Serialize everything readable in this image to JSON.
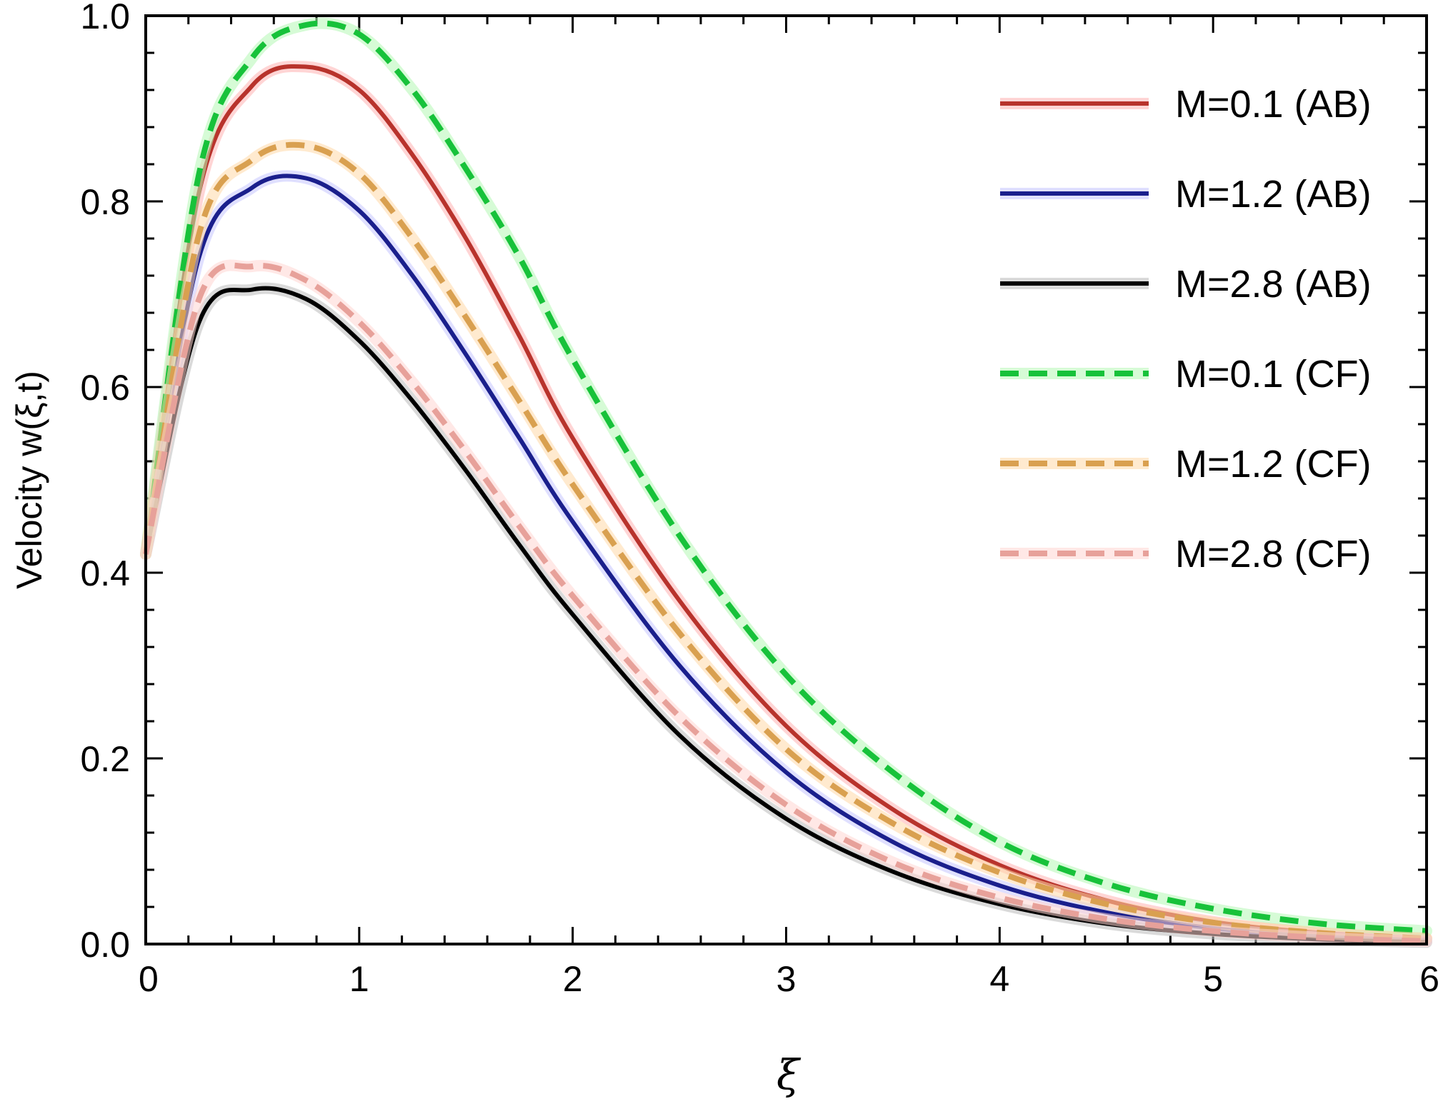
{
  "chart_data": {
    "type": "line",
    "title": "",
    "xlabel": "ξ",
    "ylabel": "Velocity w(ξ,t)",
    "xlim": [
      0,
      6
    ],
    "ylim": [
      0,
      1.0
    ],
    "xticks": [
      0,
      1,
      2,
      3,
      4,
      5,
      6
    ],
    "xtick_labels": [
      "0",
      "1",
      "2",
      "3",
      "4",
      "5",
      "6"
    ],
    "yticks": [
      0,
      0.2,
      0.4,
      0.6,
      0.8,
      1.0
    ],
    "ytick_labels": [
      "0.0",
      "0.2",
      "0.4",
      "0.6",
      "0.8",
      "1.0"
    ],
    "grid": false,
    "legend_position": "top-right",
    "x": [
      0,
      0.25,
      0.5,
      0.75,
      1,
      1.25,
      1.5,
      1.75,
      2,
      2.5,
      3,
      3.5,
      4,
      4.5,
      5,
      5.5,
      6
    ],
    "series": [
      {
        "name": "M=0.1 (AB)",
        "style": "solid",
        "color": "#b8332c",
        "glow": "#ffb3b3",
        "values": [
          0.42,
          0.81,
          0.925,
          0.945,
          0.92,
          0.85,
          0.76,
          0.655,
          0.545,
          0.37,
          0.235,
          0.145,
          0.085,
          0.047,
          0.024,
          0.012,
          0.006
        ]
      },
      {
        "name": "M=1.2 (AB)",
        "style": "solid",
        "color": "#1a1f8c",
        "glow": "#c7c7ff",
        "values": [
          0.42,
          0.74,
          0.815,
          0.825,
          0.79,
          0.72,
          0.635,
          0.545,
          0.455,
          0.3,
          0.185,
          0.11,
          0.063,
          0.034,
          0.017,
          0.008,
          0.004
        ]
      },
      {
        "name": "M=2.8 (AB)",
        "style": "solid",
        "color": "#000000",
        "glow": "#bbbbbb",
        "values": [
          0.42,
          0.67,
          0.705,
          0.695,
          0.65,
          0.585,
          0.51,
          0.43,
          0.355,
          0.225,
          0.135,
          0.078,
          0.043,
          0.022,
          0.011,
          0.005,
          0.002
        ]
      },
      {
        "name": "M=0.1 (CF)",
        "style": "dashed",
        "color": "#17c23a",
        "glow": "#b5f7b5",
        "values": [
          0.42,
          0.83,
          0.955,
          0.99,
          0.98,
          0.92,
          0.835,
          0.74,
          0.63,
          0.44,
          0.29,
          0.185,
          0.11,
          0.065,
          0.038,
          0.022,
          0.014
        ]
      },
      {
        "name": "M=1.2 (CF)",
        "style": "dashed",
        "color": "#d9a050",
        "glow": "#ffd9a8",
        "values": [
          0.42,
          0.765,
          0.845,
          0.86,
          0.83,
          0.76,
          0.675,
          0.585,
          0.495,
          0.335,
          0.21,
          0.13,
          0.077,
          0.043,
          0.023,
          0.012,
          0.006
        ]
      },
      {
        "name": "M=2.8 (CF)",
        "style": "dashed",
        "color": "#e7a19a",
        "glow": "#ffd6d2",
        "values": [
          0.42,
          0.695,
          0.73,
          0.715,
          0.67,
          0.605,
          0.53,
          0.45,
          0.375,
          0.245,
          0.15,
          0.088,
          0.05,
          0.027,
          0.014,
          0.007,
          0.003
        ]
      }
    ]
  }
}
